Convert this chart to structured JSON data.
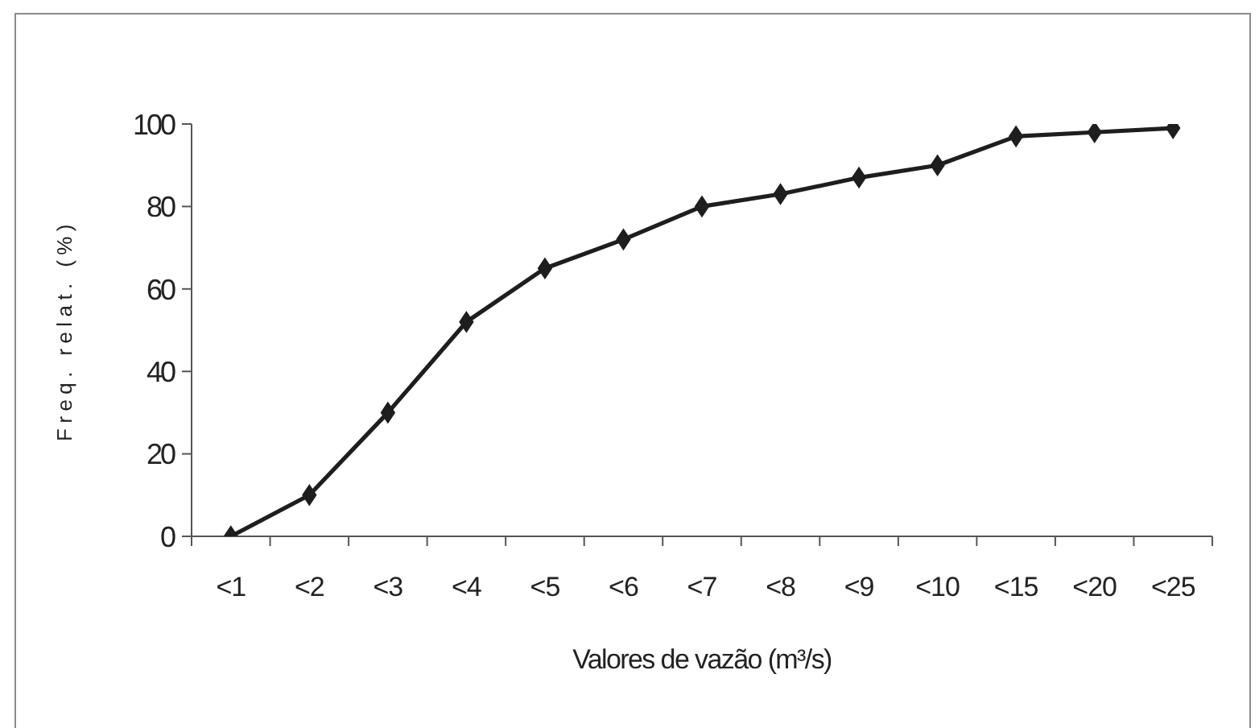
{
  "chart_data": {
    "type": "line",
    "xlabel": "Valores de vazão (m³/s)",
    "ylabel": "Freq. relat. (%)",
    "categories": [
      "<1",
      "<2",
      "<3",
      "<4",
      "<5",
      "<6",
      "<7",
      "<8",
      "<9",
      "<10",
      "<15",
      "<20",
      "<25"
    ],
    "series": [
      {
        "color": "#1e1e1e",
        "values": [
          0,
          10,
          30,
          52,
          65,
          72,
          80,
          83,
          87,
          90,
          97,
          98,
          99
        ]
      }
    ],
    "ylim": [
      0,
      100
    ],
    "yticks": [
      0,
      20,
      40,
      60,
      80,
      100
    ],
    "marker": "diamond",
    "line_style": "solid"
  }
}
